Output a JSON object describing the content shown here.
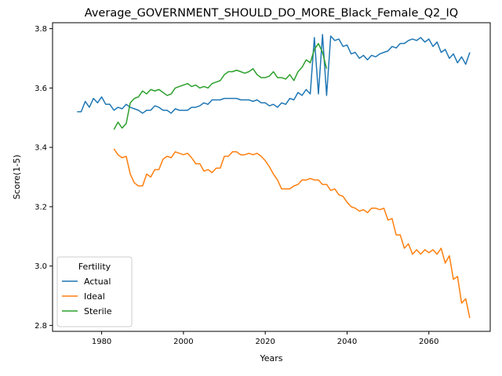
{
  "chart_data": {
    "type": "line",
    "title": "Average_GOVERNMENT_SHOULD_DO_MORE_Black_Female_Q2_IQ",
    "xlabel": "Years",
    "ylabel": "Score(1-5)",
    "xlim": [
      1968,
      2075
    ],
    "ylim": [
      2.78,
      3.82
    ],
    "xticks": [
      1980,
      2000,
      2020,
      2040,
      2060
    ],
    "yticks": [
      2.8,
      3.0,
      3.2,
      3.4,
      3.6,
      3.8
    ],
    "grid": false,
    "legend": {
      "title": "Fertility",
      "placement": "lower-left"
    },
    "series": [
      {
        "name": "Actual",
        "color": "#1f77b4",
        "x": [
          1974,
          1975,
          1976,
          1977,
          1978,
          1979,
          1980,
          1981,
          1982,
          1983,
          1984,
          1985,
          1986,
          1987,
          1988,
          1989,
          1990,
          1991,
          1992,
          1993,
          1994,
          1995,
          1996,
          1997,
          1998,
          1999,
          2000,
          2001,
          2002,
          2003,
          2004,
          2005,
          2006,
          2007,
          2008,
          2009,
          2010,
          2011,
          2012,
          2013,
          2014,
          2015,
          2016,
          2017,
          2018,
          2019,
          2020,
          2021,
          2022,
          2023,
          2024,
          2025,
          2026,
          2027,
          2028,
          2029,
          2030,
          2031,
          2032,
          2033,
          2034,
          2035,
          2036,
          2037,
          2038,
          2039,
          2040,
          2041,
          2042,
          2043,
          2044,
          2045,
          2046,
          2047,
          2048,
          2049,
          2050,
          2051,
          2052,
          2053,
          2054,
          2055,
          2056,
          2057,
          2058,
          2059,
          2060,
          2061,
          2062,
          2063,
          2064,
          2065,
          2066,
          2067,
          2068,
          2069,
          2070
        ],
        "values": [
          3.52,
          3.52,
          3.555,
          3.535,
          3.565,
          3.55,
          3.57,
          3.545,
          3.545,
          3.525,
          3.535,
          3.53,
          3.545,
          3.535,
          3.53,
          3.525,
          3.515,
          3.525,
          3.525,
          3.54,
          3.535,
          3.525,
          3.525,
          3.515,
          3.53,
          3.525,
          3.525,
          3.525,
          3.535,
          3.535,
          3.54,
          3.55,
          3.545,
          3.56,
          3.56,
          3.56,
          3.565,
          3.565,
          3.565,
          3.565,
          3.56,
          3.56,
          3.56,
          3.555,
          3.56,
          3.55,
          3.55,
          3.54,
          3.545,
          3.535,
          3.55,
          3.545,
          3.565,
          3.56,
          3.585,
          3.575,
          3.595,
          3.58,
          3.77,
          3.58,
          3.78,
          3.575,
          3.775,
          3.76,
          3.765,
          3.74,
          3.745,
          3.715,
          3.72,
          3.7,
          3.71,
          3.695,
          3.71,
          3.705,
          3.715,
          3.72,
          3.725,
          3.74,
          3.735,
          3.75,
          3.75,
          3.76,
          3.765,
          3.76,
          3.77,
          3.755,
          3.765,
          3.74,
          3.755,
          3.72,
          3.73,
          3.7,
          3.715,
          3.685,
          3.705,
          3.68,
          3.72
        ]
      },
      {
        "name": "Ideal",
        "color": "#ff7f0e",
        "x": [
          1983,
          1984,
          1985,
          1986,
          1987,
          1988,
          1989,
          1990,
          1991,
          1992,
          1993,
          1994,
          1995,
          1996,
          1997,
          1998,
          1999,
          2000,
          2001,
          2002,
          2003,
          2004,
          2005,
          2006,
          2007,
          2008,
          2009,
          2010,
          2011,
          2012,
          2013,
          2014,
          2015,
          2016,
          2017,
          2018,
          2019,
          2020,
          2021,
          2022,
          2023,
          2024,
          2025,
          2026,
          2027,
          2028,
          2029,
          2030,
          2031,
          2032,
          2033,
          2034,
          2035,
          2036,
          2037,
          2038,
          2039,
          2040,
          2041,
          2042,
          2043,
          2044,
          2045,
          2046,
          2047,
          2048,
          2049,
          2050,
          2051,
          2052,
          2053,
          2054,
          2055,
          2056,
          2057,
          2058,
          2059,
          2060,
          2061,
          2062,
          2063,
          2064,
          2065,
          2066,
          2067,
          2068,
          2069,
          2070
        ],
        "values": [
          3.395,
          3.375,
          3.365,
          3.37,
          3.31,
          3.28,
          3.27,
          3.27,
          3.31,
          3.3,
          3.325,
          3.325,
          3.36,
          3.37,
          3.365,
          3.385,
          3.38,
          3.375,
          3.38,
          3.365,
          3.345,
          3.345,
          3.32,
          3.325,
          3.315,
          3.33,
          3.33,
          3.37,
          3.37,
          3.385,
          3.385,
          3.375,
          3.375,
          3.38,
          3.375,
          3.38,
          3.37,
          3.355,
          3.335,
          3.31,
          3.29,
          3.26,
          3.26,
          3.26,
          3.27,
          3.275,
          3.29,
          3.29,
          3.295,
          3.29,
          3.29,
          3.275,
          3.275,
          3.255,
          3.26,
          3.24,
          3.235,
          3.215,
          3.2,
          3.195,
          3.185,
          3.19,
          3.18,
          3.195,
          3.195,
          3.19,
          3.195,
          3.155,
          3.16,
          3.105,
          3.105,
          3.06,
          3.075,
          3.04,
          3.055,
          3.04,
          3.055,
          3.045,
          3.055,
          3.04,
          3.06,
          3.01,
          3.035,
          2.955,
          2.965,
          2.875,
          2.89,
          2.825
        ]
      },
      {
        "name": "Sterile",
        "color": "#2ca02c",
        "x": [
          1983,
          1984,
          1985,
          1986,
          1987,
          1988,
          1989,
          1990,
          1991,
          1992,
          1993,
          1994,
          1995,
          1996,
          1997,
          1998,
          1999,
          2000,
          2001,
          2002,
          2003,
          2004,
          2005,
          2006,
          2007,
          2008,
          2009,
          2010,
          2011,
          2012,
          2013,
          2014,
          2015,
          2016,
          2017,
          2018,
          2019,
          2020,
          2021,
          2022,
          2023,
          2024,
          2025,
          2026,
          2027,
          2028,
          2029,
          2030,
          2031,
          2032,
          2033,
          2034,
          2035
        ],
        "values": [
          3.46,
          3.485,
          3.465,
          3.48,
          3.55,
          3.565,
          3.57,
          3.59,
          3.58,
          3.595,
          3.59,
          3.595,
          3.585,
          3.575,
          3.58,
          3.6,
          3.605,
          3.61,
          3.615,
          3.605,
          3.61,
          3.6,
          3.605,
          3.6,
          3.615,
          3.62,
          3.625,
          3.645,
          3.655,
          3.655,
          3.66,
          3.655,
          3.65,
          3.655,
          3.665,
          3.645,
          3.635,
          3.635,
          3.64,
          3.655,
          3.635,
          3.635,
          3.63,
          3.645,
          3.625,
          3.655,
          3.67,
          3.695,
          3.685,
          3.73,
          3.75,
          3.72,
          3.665
        ]
      }
    ]
  }
}
